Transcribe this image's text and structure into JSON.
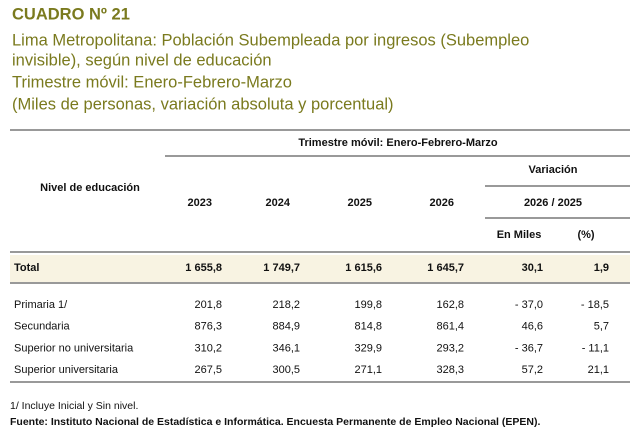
{
  "header": {
    "title": "CUADRO Nº 21",
    "subtitle": [
      "Lima Metropolitana: Población Subempleada por ingresos (Subempleo",
      "invisible), según nivel de educación",
      "Trimestre móvil: Enero-Febrero-Marzo",
      "(Miles de personas, variación absoluta y porcentual)"
    ]
  },
  "table": {
    "row_header": "Nivel de educación",
    "period": "Trimestre móvil: Enero-Febrero-Marzo",
    "years": [
      "2023",
      "2024",
      "2025",
      "2026"
    ],
    "variation": "Variación",
    "variation_period": "2026 / 2025",
    "variation_units": [
      "En Miles",
      "(%)"
    ],
    "total": [
      "Total",
      "1 655,8",
      "1 749,7",
      "1 615,6",
      "1 645,7",
      "30,1",
      "1,9"
    ],
    "rows": [
      [
        "Primaria  1/",
        "201,8",
        "218,2",
        "199,8",
        "162,8",
        "- 37,0",
        "- 18,5"
      ],
      [
        "Secundaria",
        "876,3",
        "884,9",
        "814,8",
        "861,4",
        "46,6",
        "5,7"
      ],
      [
        "Superior no universitaria",
        "310,2",
        "346,1",
        "329,9",
        "293,2",
        "- 36,7",
        "- 11,1"
      ],
      [
        "Superior universitaria",
        "267,5",
        "300,5",
        "271,1",
        "328,3",
        "57,2",
        "21,1"
      ]
    ]
  },
  "footnotes": [
    "1/ Incluye Inicial y Sin nivel.",
    "Fuente: Instituto Nacional de Estadística e Informática. Encuesta Permanente de Empleo Nacional (EPEN)."
  ]
}
